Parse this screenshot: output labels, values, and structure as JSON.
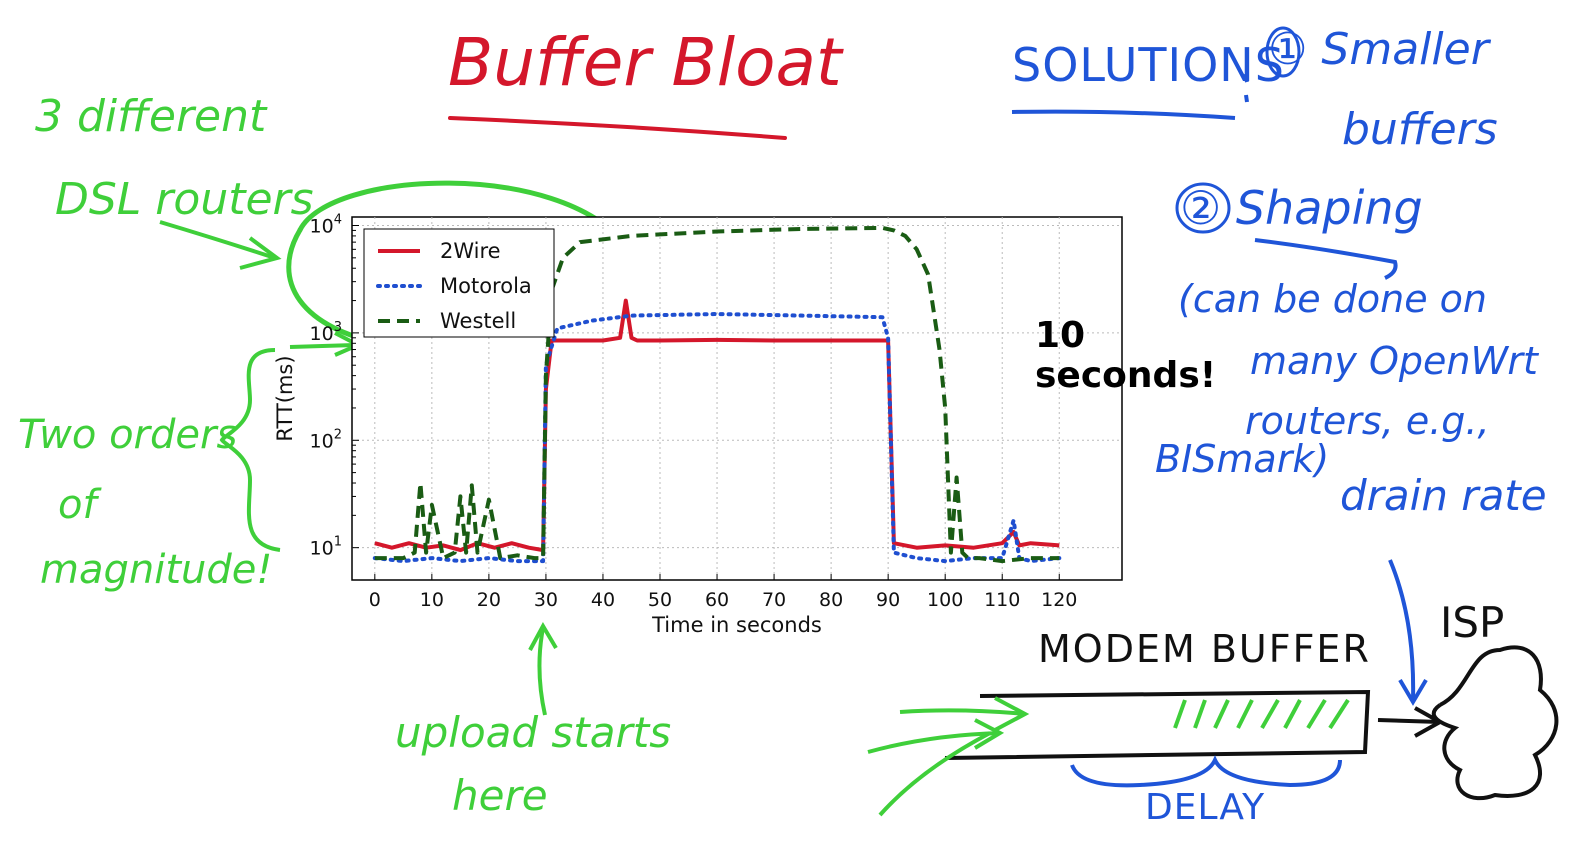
{
  "annotations": {
    "title": "Buffer Bloat",
    "dsl_note": [
      "3 different",
      "DSL routers"
    ],
    "magnitude_note": [
      "Two orders",
      "of",
      "magnitude!"
    ],
    "upload_note": [
      "upload starts",
      "here"
    ],
    "callout": [
      "10",
      "seconds!"
    ],
    "solutions_heading": "SOLUTIONS",
    "solution_1": [
      "① Smaller",
      "buffers"
    ],
    "solution_2": "② Shaping",
    "shaping_note": [
      "(can be done on",
      "many OpenWrt",
      "routers, e.g.,",
      "BISmark)"
    ],
    "drain_note": "drain rate",
    "modem_label": "MODEM  BUFFER",
    "isp_label": "ISP",
    "delay_label": "DELAY"
  },
  "colors": {
    "green": "#3fcf3a",
    "blue": "#1f55d8",
    "red": "#d4172b",
    "westell": "#1a5c14"
  },
  "chart_data": {
    "type": "line",
    "title": "",
    "xlabel": "Time in seconds",
    "ylabel": "RTT(ms)",
    "xlim": [
      -4,
      131
    ],
    "ylim": [
      5,
      12000
    ],
    "yscale": "log",
    "xticks": [
      0,
      10,
      20,
      30,
      40,
      50,
      60,
      70,
      80,
      90,
      100,
      110,
      120
    ],
    "yticks": [
      {
        "value": 10,
        "base": "10",
        "exp": "1"
      },
      {
        "value": 100,
        "base": "10",
        "exp": "2"
      },
      {
        "value": 1000,
        "base": "10",
        "exp": "3"
      },
      {
        "value": 10000,
        "base": "10",
        "exp": "4"
      }
    ],
    "grid": true,
    "legend": "top-left",
    "series": [
      {
        "name": "2Wire",
        "color": "#d4172b",
        "style": "solid",
        "x": [
          0,
          3,
          6,
          9,
          12,
          15,
          18,
          21,
          24,
          27,
          29.5,
          30,
          31,
          40,
          43,
          44,
          45,
          46,
          50,
          60,
          70,
          80,
          89,
          90,
          91,
          95,
          100,
          105,
          110,
          112,
          113,
          115,
          120
        ],
        "y": [
          11,
          10,
          11,
          10,
          10.5,
          9.5,
          11,
          10,
          11,
          10,
          9.5,
          300,
          850,
          850,
          900,
          2000,
          900,
          850,
          850,
          860,
          850,
          850,
          850,
          850,
          11,
          10,
          10.5,
          10,
          11,
          14,
          10.5,
          11,
          10.5
        ]
      },
      {
        "name": "Motorola",
        "color": "#1f4fd0",
        "style": "dotted",
        "x": [
          0,
          5,
          10,
          15,
          20,
          25,
          29.5,
          30,
          32,
          38,
          45,
          60,
          75,
          89,
          90,
          91,
          95,
          100,
          105,
          110,
          112,
          113,
          115,
          120
        ],
        "y": [
          8,
          7.5,
          8,
          7.5,
          8,
          7.5,
          7.5,
          500,
          1100,
          1300,
          1450,
          1500,
          1450,
          1400,
          900,
          9,
          8,
          7.5,
          8,
          8,
          18,
          8,
          7.5,
          8
        ]
      },
      {
        "name": "Westell",
        "color": "#1a5c14",
        "style": "dashed",
        "x": [
          0,
          5,
          7,
          8,
          9,
          10,
          12,
          14,
          15,
          16,
          17,
          18,
          20,
          22,
          25,
          28,
          29.5,
          30,
          31,
          33,
          36,
          45,
          60,
          75,
          89,
          91,
          93,
          95,
          97,
          99,
          100,
          101,
          102,
          103,
          104,
          106,
          110,
          115,
          120
        ],
        "y": [
          8,
          8,
          9,
          40,
          9,
          25,
          8,
          9,
          30,
          9,
          38,
          9,
          28,
          8,
          8.5,
          8,
          8,
          400,
          2500,
          5000,
          7000,
          8000,
          8800,
          9300,
          9500,
          9000,
          8000,
          6000,
          3500,
          700,
          200,
          9,
          45,
          9,
          8,
          8,
          7.5,
          8,
          8
        ]
      }
    ]
  }
}
